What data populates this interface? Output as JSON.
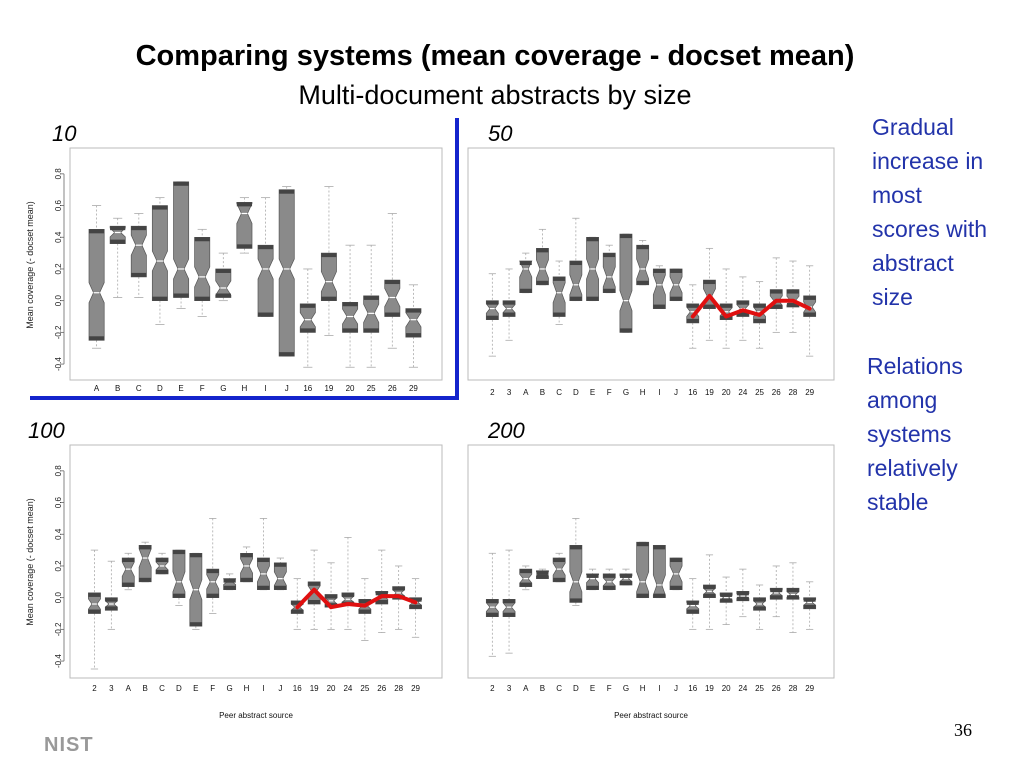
{
  "slide": {
    "title": "Comparing systems (mean coverage - docset mean)",
    "subtitle": "Multi-document abstracts by size",
    "note1": [
      "Gradual",
      "increase in",
      "most",
      "scores with",
      "abstract",
      "size"
    ],
    "note2": [
      "Relations",
      "among",
      "systems",
      "relatively",
      "stable"
    ],
    "page_number": "36",
    "logo": "NIST"
  },
  "colors": {
    "highlight_line": "#e01010",
    "divider": "#1424cc",
    "note_text": "#2233aa"
  },
  "chart_data": [
    {
      "type": "boxplot",
      "size_label": "10",
      "ylabel": "Mean coverage (- docset mean)",
      "xlabel": "",
      "ylim": [
        -0.45,
        0.9
      ],
      "yticks": [
        "-0.4",
        "-0.2",
        "0.0",
        "0.2",
        "0.4",
        "0.6",
        "0.8"
      ],
      "categories": [
        "A",
        "B",
        "C",
        "D",
        "E",
        "F",
        "G",
        "H",
        "I",
        "J",
        "16",
        "19",
        "20",
        "25",
        "26",
        "29"
      ],
      "boxes": [
        {
          "min": -0.3,
          "q1": -0.25,
          "median": 0.05,
          "q3": 0.45,
          "max": 0.6
        },
        {
          "min": 0.02,
          "q1": 0.36,
          "median": 0.43,
          "q3": 0.47,
          "max": 0.52
        },
        {
          "min": 0.02,
          "q1": 0.15,
          "median": 0.35,
          "q3": 0.47,
          "max": 0.55
        },
        {
          "min": -0.15,
          "q1": 0.0,
          "median": 0.25,
          "q3": 0.6,
          "max": 0.65
        },
        {
          "min": -0.05,
          "q1": 0.02,
          "median": 0.2,
          "q3": 0.75,
          "max": 0.75
        },
        {
          "min": -0.1,
          "q1": 0.0,
          "median": 0.15,
          "q3": 0.4,
          "max": 0.45
        },
        {
          "min": 0.0,
          "q1": 0.02,
          "median": 0.08,
          "q3": 0.2,
          "max": 0.3
        },
        {
          "min": 0.3,
          "q1": 0.33,
          "median": 0.55,
          "q3": 0.62,
          "max": 0.65
        },
        {
          "min": -0.1,
          "q1": -0.1,
          "median": 0.2,
          "q3": 0.35,
          "max": 0.65
        },
        {
          "min": -0.35,
          "q1": -0.35,
          "median": 0.2,
          "q3": 0.7,
          "max": 0.72
        },
        {
          "min": -0.42,
          "q1": -0.2,
          "median": -0.12,
          "q3": -0.02,
          "max": 0.2
        },
        {
          "min": -0.22,
          "q1": 0.0,
          "median": 0.12,
          "q3": 0.3,
          "max": 0.72
        },
        {
          "min": -0.42,
          "q1": -0.2,
          "median": -0.1,
          "q3": -0.01,
          "max": 0.35
        },
        {
          "min": -0.42,
          "q1": -0.2,
          "median": -0.08,
          "q3": 0.03,
          "max": 0.35
        },
        {
          "min": -0.3,
          "q1": -0.1,
          "median": 0.02,
          "q3": 0.13,
          "max": 0.55
        },
        {
          "min": -0.42,
          "q1": -0.23,
          "median": -0.12,
          "q3": -0.05,
          "max": 0.1
        }
      ],
      "red_line": []
    },
    {
      "type": "boxplot",
      "size_label": "50",
      "ylabel": "",
      "xlabel": "",
      "ylim": [
        -0.45,
        0.9
      ],
      "yticks": [],
      "categories": [
        "2",
        "3",
        "A",
        "B",
        "C",
        "D",
        "E",
        "F",
        "G",
        "H",
        "I",
        "J",
        "16",
        "19",
        "20",
        "24",
        "25",
        "26",
        "28",
        "29"
      ],
      "boxes": [
        {
          "min": -0.35,
          "q1": -0.12,
          "median": -0.05,
          "q3": 0.0,
          "max": 0.17
        },
        {
          "min": -0.25,
          "q1": -0.1,
          "median": -0.05,
          "q3": 0.0,
          "max": 0.2
        },
        {
          "min": 0.05,
          "q1": 0.05,
          "median": 0.2,
          "q3": 0.25,
          "max": 0.3
        },
        {
          "min": 0.1,
          "q1": 0.1,
          "median": 0.2,
          "q3": 0.33,
          "max": 0.45
        },
        {
          "min": -0.15,
          "q1": -0.1,
          "median": 0.05,
          "q3": 0.15,
          "max": 0.25
        },
        {
          "min": 0.0,
          "q1": 0.0,
          "median": 0.1,
          "q3": 0.25,
          "max": 0.52
        },
        {
          "min": 0.0,
          "q1": 0.0,
          "median": 0.2,
          "q3": 0.4,
          "max": 0.4
        },
        {
          "min": 0.05,
          "q1": 0.05,
          "median": 0.15,
          "q3": 0.3,
          "max": 0.35
        },
        {
          "min": -0.2,
          "q1": -0.2,
          "median": 0.0,
          "q3": 0.42,
          "max": 0.42
        },
        {
          "min": 0.1,
          "q1": 0.1,
          "median": 0.2,
          "q3": 0.35,
          "max": 0.38
        },
        {
          "min": -0.05,
          "q1": -0.05,
          "median": 0.1,
          "q3": 0.2,
          "max": 0.22
        },
        {
          "min": 0.0,
          "q1": 0.0,
          "median": 0.1,
          "q3": 0.2,
          "max": 0.2
        },
        {
          "min": -0.3,
          "q1": -0.14,
          "median": -0.07,
          "q3": -0.02,
          "max": 0.1
        },
        {
          "min": -0.25,
          "q1": -0.05,
          "median": 0.03,
          "q3": 0.13,
          "max": 0.33
        },
        {
          "min": -0.3,
          "q1": -0.12,
          "median": -0.07,
          "q3": -0.02,
          "max": 0.2
        },
        {
          "min": -0.25,
          "q1": -0.1,
          "median": -0.05,
          "q3": 0.0,
          "max": 0.15
        },
        {
          "min": -0.3,
          "q1": -0.14,
          "median": -0.07,
          "q3": -0.02,
          "max": 0.12
        },
        {
          "min": -0.2,
          "q1": -0.05,
          "median": 0.0,
          "q3": 0.07,
          "max": 0.27
        },
        {
          "min": -0.2,
          "q1": -0.04,
          "median": 0.0,
          "q3": 0.07,
          "max": 0.25
        },
        {
          "min": -0.35,
          "q1": -0.1,
          "median": -0.04,
          "q3": 0.03,
          "max": 0.22
        }
      ],
      "red_line": [
        {
          "category": "16",
          "value": -0.1
        },
        {
          "category": "19",
          "value": 0.03
        },
        {
          "category": "20",
          "value": -0.1
        },
        {
          "category": "24",
          "value": -0.06
        },
        {
          "category": "25",
          "value": -0.09
        },
        {
          "category": "26",
          "value": 0.0
        },
        {
          "category": "28",
          "value": 0.0
        },
        {
          "category": "29",
          "value": -0.05
        }
      ]
    },
    {
      "type": "boxplot",
      "size_label": "100",
      "ylabel": "Mean coverage (- docset mean)",
      "xlabel": "Peer abstract source",
      "ylim": [
        -0.45,
        0.9
      ],
      "yticks": [
        "-0.4",
        "-0.2",
        "0.0",
        "0.2",
        "0.4",
        "0.6",
        "0.8"
      ],
      "categories": [
        "2",
        "3",
        "A",
        "B",
        "C",
        "D",
        "E",
        "F",
        "G",
        "H",
        "I",
        "J",
        "16",
        "19",
        "20",
        "24",
        "25",
        "26",
        "28",
        "29"
      ],
      "boxes": [
        {
          "min": -0.45,
          "q1": -0.1,
          "median": -0.04,
          "q3": 0.03,
          "max": 0.3
        },
        {
          "min": -0.2,
          "q1": -0.08,
          "median": -0.04,
          "q3": 0.0,
          "max": 0.23
        },
        {
          "min": 0.05,
          "q1": 0.07,
          "median": 0.18,
          "q3": 0.25,
          "max": 0.28
        },
        {
          "min": 0.1,
          "q1": 0.1,
          "median": 0.25,
          "q3": 0.33,
          "max": 0.35
        },
        {
          "min": 0.15,
          "q1": 0.15,
          "median": 0.2,
          "q3": 0.25,
          "max": 0.28
        },
        {
          "min": -0.05,
          "q1": 0.0,
          "median": 0.1,
          "q3": 0.3,
          "max": 0.3
        },
        {
          "min": -0.2,
          "q1": -0.18,
          "median": 0.05,
          "q3": 0.28,
          "max": 0.28
        },
        {
          "min": -0.1,
          "q1": 0.0,
          "median": 0.1,
          "q3": 0.18,
          "max": 0.5
        },
        {
          "min": 0.05,
          "q1": 0.05,
          "median": 0.1,
          "q3": 0.12,
          "max": 0.15
        },
        {
          "min": 0.1,
          "q1": 0.1,
          "median": 0.2,
          "q3": 0.28,
          "max": 0.32
        },
        {
          "min": 0.05,
          "q1": 0.05,
          "median": 0.15,
          "q3": 0.25,
          "max": 0.5
        },
        {
          "min": 0.05,
          "q1": 0.05,
          "median": 0.12,
          "q3": 0.22,
          "max": 0.25
        },
        {
          "min": -0.2,
          "q1": -0.1,
          "median": -0.06,
          "q3": -0.02,
          "max": 0.12
        },
        {
          "min": -0.2,
          "q1": -0.04,
          "median": 0.04,
          "q3": 0.1,
          "max": 0.3
        },
        {
          "min": -0.2,
          "q1": -0.06,
          "median": -0.02,
          "q3": 0.02,
          "max": 0.22
        },
        {
          "min": -0.2,
          "q1": -0.05,
          "median": -0.01,
          "q3": 0.03,
          "max": 0.38
        },
        {
          "min": -0.27,
          "q1": -0.1,
          "median": -0.05,
          "q3": -0.01,
          "max": 0.12
        },
        {
          "min": -0.22,
          "q1": -0.04,
          "median": 0.01,
          "q3": 0.04,
          "max": 0.3
        },
        {
          "min": -0.2,
          "q1": -0.01,
          "median": 0.03,
          "q3": 0.07,
          "max": 0.2
        },
        {
          "min": -0.25,
          "q1": -0.07,
          "median": -0.03,
          "q3": 0.0,
          "max": 0.12
        }
      ],
      "red_line": [
        {
          "category": "16",
          "value": -0.06
        },
        {
          "category": "19",
          "value": 0.05
        },
        {
          "category": "20",
          "value": -0.06
        },
        {
          "category": "24",
          "value": -0.04
        },
        {
          "category": "25",
          "value": -0.05
        },
        {
          "category": "26",
          "value": 0.01
        },
        {
          "category": "28",
          "value": 0.01
        },
        {
          "category": "29",
          "value": -0.03
        }
      ]
    },
    {
      "type": "boxplot",
      "size_label": "200",
      "ylabel": "",
      "xlabel": "Peer abstract source",
      "ylim": [
        -0.45,
        0.9
      ],
      "yticks": [],
      "categories": [
        "2",
        "3",
        "A",
        "B",
        "C",
        "D",
        "E",
        "F",
        "G",
        "H",
        "I",
        "J",
        "16",
        "19",
        "20",
        "24",
        "25",
        "26",
        "28",
        "29"
      ],
      "boxes": [
        {
          "min": -0.37,
          "q1": -0.12,
          "median": -0.06,
          "q3": -0.01,
          "max": 0.28
        },
        {
          "min": -0.35,
          "q1": -0.12,
          "median": -0.06,
          "q3": -0.01,
          "max": 0.3
        },
        {
          "min": 0.05,
          "q1": 0.07,
          "median": 0.12,
          "q3": 0.18,
          "max": 0.2
        },
        {
          "min": 0.12,
          "q1": 0.12,
          "median": 0.15,
          "q3": 0.17,
          "max": 0.18
        },
        {
          "min": 0.1,
          "q1": 0.1,
          "median": 0.18,
          "q3": 0.25,
          "max": 0.28
        },
        {
          "min": -0.05,
          "q1": -0.03,
          "median": 0.1,
          "q3": 0.33,
          "max": 0.5
        },
        {
          "min": 0.05,
          "q1": 0.05,
          "median": 0.12,
          "q3": 0.15,
          "max": 0.18
        },
        {
          "min": 0.05,
          "q1": 0.05,
          "median": 0.1,
          "q3": 0.15,
          "max": 0.18
        },
        {
          "min": 0.08,
          "q1": 0.08,
          "median": 0.12,
          "q3": 0.15,
          "max": 0.18
        },
        {
          "min": 0.0,
          "q1": 0.0,
          "median": 0.1,
          "q3": 0.35,
          "max": 0.35
        },
        {
          "min": 0.0,
          "q1": 0.0,
          "median": 0.08,
          "q3": 0.33,
          "max": 0.33
        },
        {
          "min": 0.05,
          "q1": 0.05,
          "median": 0.15,
          "q3": 0.25,
          "max": 0.25
        },
        {
          "min": -0.2,
          "q1": -0.1,
          "median": -0.05,
          "q3": -0.02,
          "max": 0.12
        },
        {
          "min": -0.2,
          "q1": 0.0,
          "median": 0.04,
          "q3": 0.08,
          "max": 0.27
        },
        {
          "min": -0.17,
          "q1": -0.03,
          "median": 0.0,
          "q3": 0.03,
          "max": 0.13
        },
        {
          "min": -0.12,
          "q1": -0.02,
          "median": 0.01,
          "q3": 0.04,
          "max": 0.18
        },
        {
          "min": -0.2,
          "q1": -0.08,
          "median": -0.04,
          "q3": 0.0,
          "max": 0.08
        },
        {
          "min": -0.12,
          "q1": -0.01,
          "median": 0.03,
          "q3": 0.06,
          "max": 0.2
        },
        {
          "min": -0.22,
          "q1": -0.01,
          "median": 0.02,
          "q3": 0.06,
          "max": 0.22
        },
        {
          "min": -0.2,
          "q1": -0.07,
          "median": -0.03,
          "q3": 0.0,
          "max": 0.1
        }
      ],
      "red_line": []
    }
  ]
}
